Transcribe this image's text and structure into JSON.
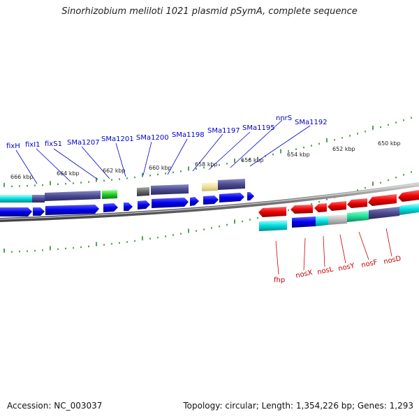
{
  "title": "Sinorhizobium meliloti 1021 plasmid pSymA, complete sequence",
  "footer": {
    "accession": "Accession: NC_003037",
    "summary": "Topology: circular; Length: 1,354,226 bp; Genes: 1,293"
  },
  "ruler_labels": [
    "666 kbp",
    "664 kbp",
    "662 kbp",
    "660 kbp",
    "658 kbp",
    "656 kbp",
    "654 kbp",
    "652 kbp",
    "650 kbp"
  ],
  "top_gene_labels": [
    "fixH",
    "fixI1",
    "fixS1",
    "SMa1207",
    "SMa1201",
    "SMa1200",
    "SMa1198",
    "SMa1197",
    "SMa1195",
    "nnrS",
    "SMa1192"
  ],
  "bottom_gene_labels": [
    "fhp",
    "nosX",
    "nosL",
    "nosY",
    "nosF",
    "nosD"
  ],
  "colors": {
    "forward_gene": "#0000ee",
    "reverse_gene": "#ee0000",
    "cds_cyan": "#00dddd",
    "cds_purple": "#4a4a90",
    "cds_green": "#33cc33",
    "cds_gray": "#666666",
    "cds_tan": "#eee0a0",
    "backbone": "#888888",
    "tick": "#2a8a2a"
  }
}
